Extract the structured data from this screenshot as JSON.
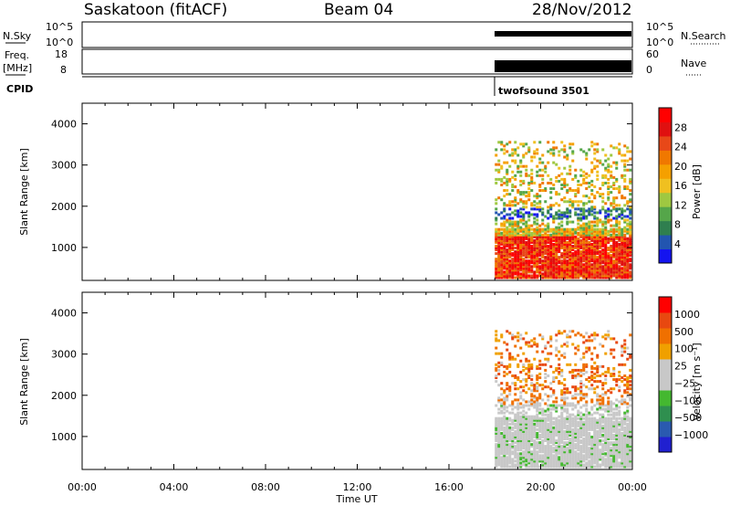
{
  "header": {
    "station": "Saskatoon (fitACF)",
    "beam": "Beam 04",
    "date": "28/Nov/2012"
  },
  "top_panels": {
    "nsky_label": "N.Sky",
    "nsearch_label": "N.Search",
    "nsky_ticks": [
      "10^5",
      "10^0"
    ],
    "nsky_right_ticks": [
      "10^5",
      "10^0"
    ],
    "freq_label": "Freq.",
    "freq_unit": "[MHz]",
    "freq_ticks": [
      "18",
      "8"
    ],
    "nave_label": "Nave",
    "nave_ticks": [
      "60",
      "0"
    ],
    "cpid_label": "CPID",
    "cpid_value": "twofsound 3501"
  },
  "chart_data": [
    {
      "type": "heatmap",
      "name": "power",
      "ylabel": "Slant Range [km]",
      "yticks": [
        "4000",
        "3000",
        "2000",
        "1000"
      ],
      "ylim": [
        200,
        4500
      ],
      "xlim": [
        0,
        24
      ],
      "data_start_hour": 18,
      "colorbar_label": "Power [dB]",
      "colorbar_ticks": [
        "28",
        "24",
        "20",
        "16",
        "12",
        "8",
        "4"
      ],
      "colors": [
        "#1414f0",
        "#2255b0",
        "#2f7f4f",
        "#55a64a",
        "#9fc841",
        "#f0c020",
        "#f5a000",
        "#f07800",
        "#e84818",
        "#e01010",
        "#ff0000"
      ]
    },
    {
      "type": "heatmap",
      "name": "velocity",
      "ylabel": "Slant Range [km]",
      "yticks": [
        "4000",
        "3000",
        "2000",
        "1000"
      ],
      "ylim": [
        200,
        4500
      ],
      "xlim": [
        0,
        24
      ],
      "data_start_hour": 18,
      "colorbar_label": "Velocity [m s⁻¹]",
      "colorbar_ticks": [
        "1000",
        "500",
        "100",
        "25",
        "−25",
        "−100",
        "−500",
        "−1000"
      ],
      "colors": [
        "#2020d0",
        "#2a5ab0",
        "#2f8f4f",
        "#44b830",
        "#c8c8c8",
        "#c8c8c8",
        "#f0a000",
        "#f07000",
        "#e84810",
        "#ff0000"
      ]
    }
  ],
  "xaxis": {
    "ticks": [
      "00:00",
      "04:00",
      "08:00",
      "12:00",
      "16:00",
      "20:00",
      "00:00"
    ],
    "label": "Time UT"
  }
}
